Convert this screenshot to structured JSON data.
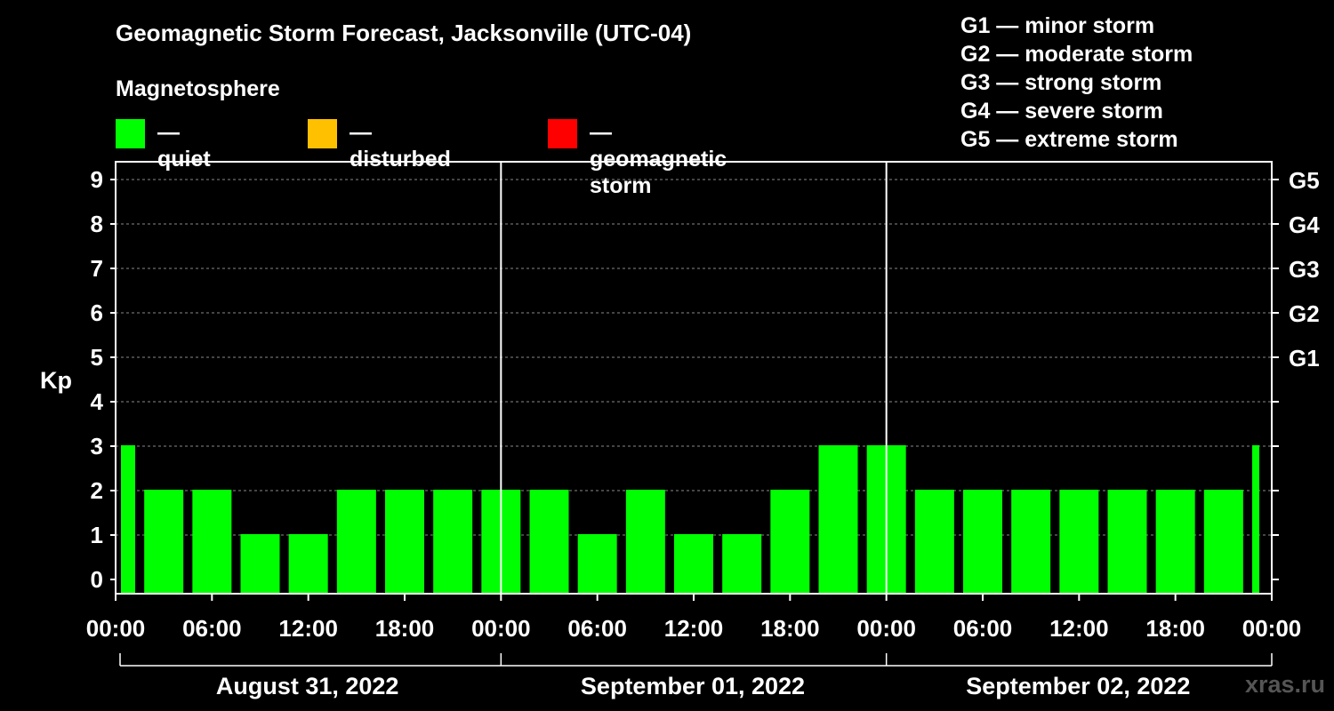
{
  "title": "Geomagnetic Storm Forecast, Jacksonville (UTC-04)",
  "subtitle": "Magnetosphere",
  "legend": [
    {
      "label": "— quiet",
      "color": "#00ff00"
    },
    {
      "label": "— disturbed",
      "color": "#ffc000"
    },
    {
      "label": "— geomagnetic storm",
      "color": "#ff0000"
    }
  ],
  "storm_scale": [
    "G1 — minor storm",
    "G2 — moderate storm",
    "G3 — strong storm",
    "G4 — severe storm",
    "G5 — extreme storm"
  ],
  "watermark": "xras.ru",
  "chart_data": {
    "type": "bar",
    "ylabel": "Kp",
    "ylim": [
      0,
      9
    ],
    "yticks": [
      0,
      1,
      2,
      3,
      4,
      5,
      6,
      7,
      8,
      9
    ],
    "right_ticks": [
      {
        "value": 5,
        "label": "G1"
      },
      {
        "value": 6,
        "label": "G2"
      },
      {
        "value": 7,
        "label": "G3"
      },
      {
        "value": 8,
        "label": "G4"
      },
      {
        "value": 9,
        "label": "G5"
      }
    ],
    "x_tick_labels": [
      "00:00",
      "06:00",
      "12:00",
      "18:00",
      "00:00",
      "06:00",
      "12:00",
      "18:00",
      "00:00",
      "06:00",
      "12:00",
      "18:00",
      "00:00"
    ],
    "dates": [
      "August 31, 2022",
      "September 01, 2022",
      "September 02, 2022"
    ],
    "categories": [
      "2022-08-31 00:00",
      "2022-08-31 03:00",
      "2022-08-31 06:00",
      "2022-08-31 09:00",
      "2022-08-31 12:00",
      "2022-08-31 15:00",
      "2022-08-31 18:00",
      "2022-08-31 21:00",
      "2022-09-01 00:00",
      "2022-09-01 03:00",
      "2022-09-01 06:00",
      "2022-09-01 09:00",
      "2022-09-01 12:00",
      "2022-09-01 15:00",
      "2022-09-01 18:00",
      "2022-09-01 21:00",
      "2022-09-02 00:00",
      "2022-09-02 03:00",
      "2022-09-02 06:00",
      "2022-09-02 09:00",
      "2022-09-02 12:00",
      "2022-09-02 15:00",
      "2022-09-02 18:00",
      "2022-09-02 21:00",
      "2022-09-03 00:00"
    ],
    "values": [
      3,
      2,
      2,
      1,
      1,
      2,
      2,
      2,
      2,
      2,
      1,
      2,
      1,
      1,
      2,
      3,
      3,
      2,
      2,
      2,
      2,
      2,
      2,
      2,
      3
    ],
    "bar_color": "#00ff00",
    "grid": true
  }
}
